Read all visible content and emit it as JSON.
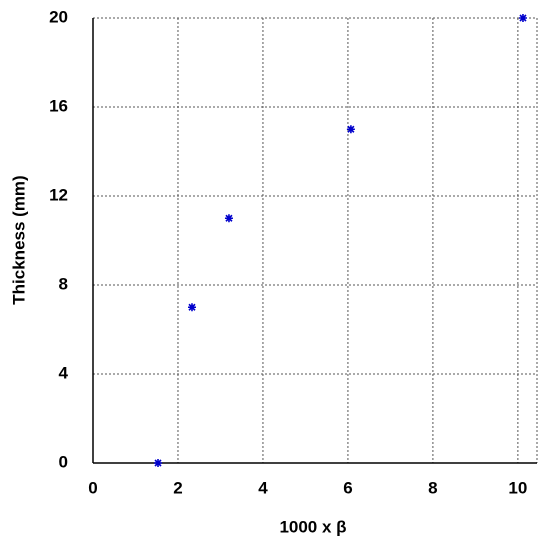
{
  "chart_data": {
    "type": "scatter",
    "x_label": "1000 x β",
    "y_label": "Thickness (mm)",
    "series": [
      {
        "color": "#0000cc",
        "x": [
          1.53,
          2.33,
          3.2,
          6.07,
          10.12
        ],
        "values": [
          0,
          7,
          11,
          15,
          20
        ]
      }
    ],
    "xlim": [
      0,
      10.45
    ],
    "xticks": [
      0,
      2,
      4,
      6,
      8,
      10
    ],
    "ylim": [
      0,
      20
    ],
    "yticks": [
      0,
      4,
      8,
      12,
      16,
      20
    ],
    "grid": true
  }
}
